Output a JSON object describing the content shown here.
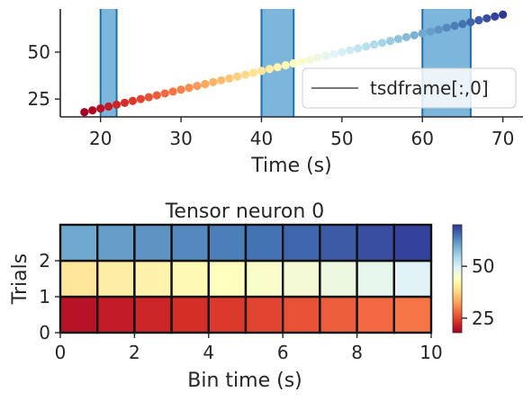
{
  "chart_data": [
    {
      "type": "scatter",
      "title": "",
      "xlabel": "Time (s)",
      "ylabel": "",
      "xlim": [
        15,
        72.5
      ],
      "ylim": [
        15.5,
        73
      ],
      "xticks": [
        20,
        30,
        40,
        50,
        60,
        70
      ],
      "yticks": [
        25,
        50
      ],
      "legend": {
        "position": "center-right",
        "entries": [
          "tsdframe[:,0]"
        ]
      },
      "epochs": [
        [
          20,
          22
        ],
        [
          40,
          44
        ],
        [
          60,
          66
        ]
      ],
      "epoch_color": "#7db6dc",
      "epoch_edge_color": "#1f6fae",
      "x": [
        18,
        19,
        20,
        21,
        22,
        23,
        24,
        25,
        26,
        27,
        28,
        29,
        30,
        31,
        32,
        33,
        34,
        35,
        36,
        37,
        38,
        39,
        40,
        41,
        42,
        43,
        44,
        45,
        46,
        47,
        48,
        49,
        50,
        51,
        52,
        53,
        54,
        55,
        56,
        57,
        58,
        59,
        60,
        61,
        62,
        63,
        64,
        65,
        66,
        67,
        68,
        69,
        70
      ],
      "y": [
        18,
        19,
        20,
        21,
        22,
        23,
        24,
        25,
        26,
        27,
        28,
        29,
        30,
        31,
        32,
        33,
        34,
        35,
        36,
        37,
        38,
        39,
        40,
        41,
        42,
        43,
        44,
        45,
        46,
        47,
        48,
        49,
        50,
        51,
        52,
        53,
        54,
        55,
        56,
        57,
        58,
        59,
        60,
        61,
        62,
        63,
        64,
        65,
        66,
        67,
        68,
        69,
        70
      ],
      "colormap": "RdYlBu",
      "color_range": [
        18,
        70
      ]
    },
    {
      "type": "heatmap",
      "title": "Tensor neuron 0",
      "xlabel": "Bin time (s)",
      "ylabel": "Trials",
      "xlim": [
        0,
        10
      ],
      "ylim": [
        0,
        3
      ],
      "xticks": [
        0,
        2,
        4,
        6,
        8,
        10
      ],
      "yticks": [
        0,
        1,
        2
      ],
      "rows": [
        [
          20,
          21,
          22,
          23,
          24,
          25,
          26,
          27,
          28,
          29
        ],
        [
          40,
          41,
          42,
          43,
          44,
          45,
          46,
          47,
          48,
          49
        ],
        [
          60,
          61,
          62,
          63,
          64,
          65,
          66,
          67,
          68,
          69
        ]
      ],
      "colormap": "RdYlBu",
      "color_range": [
        18,
        70
      ],
      "colorbar_ticks": [
        25,
        50
      ]
    }
  ]
}
